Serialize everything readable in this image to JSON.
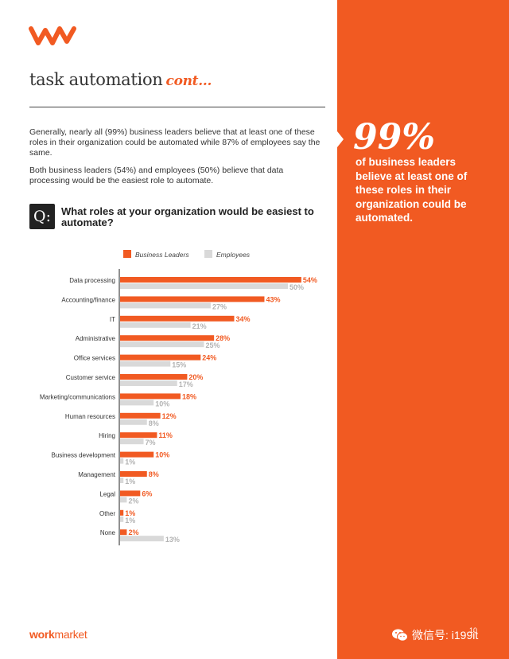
{
  "header": {
    "title": "task automation",
    "title_suffix": "cont..."
  },
  "intro": {
    "paragraph_1": "Generally, nearly all (99%) business leaders believe that at least one of these roles in their organization could be automated while 87% of employees say the same.",
    "paragraph_2": "Both business leaders (54%) and employees (50%) believe that data processing would be the easiest role to automate."
  },
  "question": {
    "label": "Q:",
    "text": "What roles at your organization would be easiest to automate?"
  },
  "callout": {
    "number": "99%",
    "text": "of business leaders believe at least one of these roles in their organization could be automated."
  },
  "footer": {
    "brand_work": "work",
    "brand_market": "market",
    "page_number": "10",
    "watermark": "微信号: i199it"
  },
  "colors": {
    "accent": "#f15a22",
    "employees": "#d9d9d9",
    "employee_label": "#b3b3b3"
  },
  "chart_data": {
    "type": "bar",
    "orientation": "horizontal",
    "legend_position": "top",
    "categories": [
      "Data processing",
      "Accounting/finance",
      "IT",
      "Administrative",
      "Office services",
      "Customer service",
      "Marketing/communications",
      "Human resources",
      "Hiring",
      "Business development",
      "Management",
      "Legal",
      "Other",
      "None"
    ],
    "series": [
      {
        "name": "Business Leaders",
        "values": [
          54,
          43,
          34,
          28,
          24,
          20,
          18,
          12,
          11,
          10,
          8,
          6,
          1,
          2
        ]
      },
      {
        "name": "Employees",
        "values": [
          50,
          27,
          21,
          25,
          15,
          17,
          10,
          8,
          7,
          1,
          1,
          2,
          1,
          13
        ]
      }
    ],
    "value_suffix": "%",
    "xlim": [
      0,
      100
    ]
  }
}
